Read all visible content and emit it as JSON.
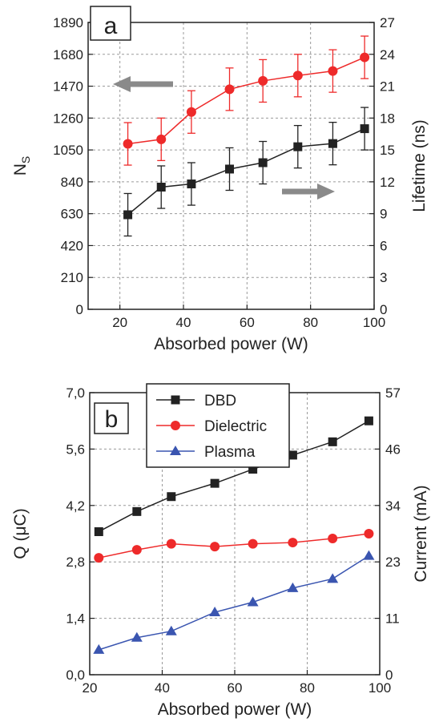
{
  "chart_data": [
    {
      "type": "line",
      "panel_label": "a",
      "xlabel": "Absorbed power (W)",
      "ylabel_left": "N",
      "ylabel_left_sub": "S",
      "ylabel_right": "Lifetime (ns)",
      "xlim": [
        10,
        100
      ],
      "xticks": [
        20,
        40,
        60,
        80,
        100
      ],
      "ylim_left": [
        0,
        1890
      ],
      "yticks_left": [
        0,
        210,
        420,
        630,
        840,
        1050,
        1260,
        1470,
        1680,
        1890
      ],
      "ylim_right": [
        0,
        27
      ],
      "yticks_right": [
        0,
        3,
        6,
        9,
        12,
        15,
        18,
        21,
        24,
        27
      ],
      "grid": true,
      "series": [
        {
          "axis": "left",
          "color": "#ee2a2a",
          "marker": "circle",
          "x": [
            22.5,
            33,
            42.5,
            54.5,
            65,
            76,
            87,
            97
          ],
          "y": [
            1090,
            1120,
            1300,
            1450,
            1505,
            1540,
            1570,
            1660
          ],
          "err": [
            140,
            140,
            140,
            140,
            140,
            140,
            140,
            140
          ]
        },
        {
          "axis": "right",
          "color": "#222222",
          "marker": "square",
          "x": [
            22.5,
            33,
            42.5,
            54.5,
            65,
            76,
            87,
            97
          ],
          "y": [
            8.9,
            11.5,
            11.8,
            13.2,
            13.8,
            15.3,
            15.6,
            17.0
          ],
          "err": [
            2.0,
            2.0,
            2.0,
            2.0,
            2.0,
            2.0,
            2.0,
            2.0
          ]
        }
      ]
    },
    {
      "type": "line",
      "panel_label": "b",
      "xlabel": "Absorbed power (W)",
      "ylabel_left": "Q (μC)",
      "ylabel_right": "Current (mA)",
      "xlim": [
        20,
        100
      ],
      "xticks": [
        20,
        40,
        60,
        80,
        100
      ],
      "ylim_left": [
        0,
        7
      ],
      "yticks_left": [
        "0,0",
        "1,4",
        "2,8",
        "4,2",
        "5,6",
        "7,0"
      ],
      "yticks_left_values": [
        0,
        1.4,
        2.8,
        4.2,
        5.6,
        7.0
      ],
      "ylim_right": [
        0,
        57
      ],
      "yticks_right": [
        0,
        11,
        23,
        34,
        46,
        57
      ],
      "yticks_right_values": [
        0,
        11.4,
        22.8,
        34.2,
        45.6,
        57
      ],
      "grid": true,
      "legend": "top-center",
      "series": [
        {
          "name": "DBD",
          "color": "#222222",
          "marker": "square",
          "x": [
            22.5,
            33,
            42.5,
            54.5,
            65,
            76,
            87,
            97
          ],
          "y": [
            3.55,
            4.05,
            4.42,
            4.75,
            5.1,
            5.45,
            5.78,
            6.3
          ]
        },
        {
          "name": "Dielectric",
          "color": "#ee2a2a",
          "marker": "circle",
          "x": [
            22.5,
            33,
            42.5,
            54.5,
            65,
            76,
            87,
            97
          ],
          "y": [
            2.9,
            3.1,
            3.25,
            3.18,
            3.25,
            3.28,
            3.38,
            3.5
          ]
        },
        {
          "name": "Plasma",
          "color": "#3a55b0",
          "marker": "triangle",
          "x": [
            22.5,
            33,
            42.5,
            54.5,
            65,
            76,
            87,
            97
          ],
          "y": [
            0.62,
            0.92,
            1.08,
            1.55,
            1.8,
            2.15,
            2.38,
            2.95
          ]
        }
      ]
    }
  ]
}
